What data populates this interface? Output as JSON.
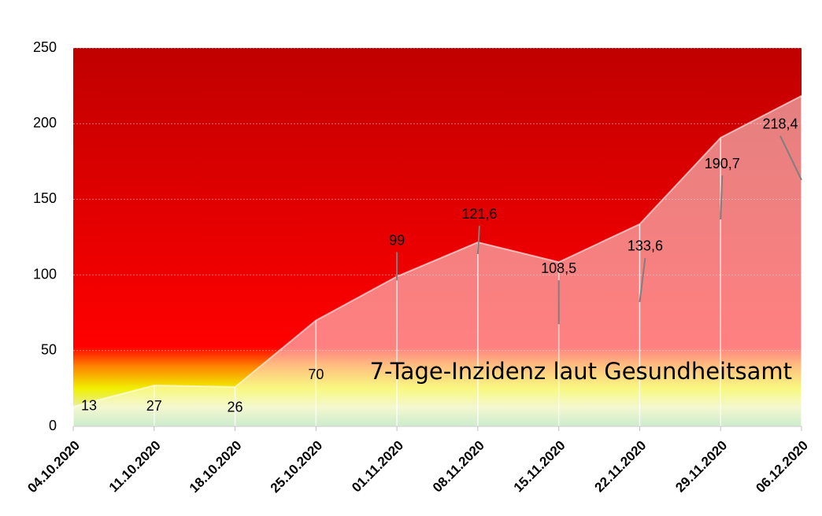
{
  "chart_data": {
    "type": "area",
    "annotation": "7-Tage-Inzidenz laut Gesundheitsamt",
    "categories": [
      "04.10.2020",
      "11.10.2020",
      "18.10.2020",
      "25.10.2020",
      "01.11.2020",
      "08.11.2020",
      "15.11.2020",
      "22.11.2020",
      "29.11.2020",
      "06.12.2020"
    ],
    "values": [
      13,
      27,
      26,
      70,
      99,
      121.6,
      108.5,
      133.6,
      190.7,
      218.4
    ],
    "value_labels": [
      "13",
      "27",
      "26",
      "70",
      "99",
      "121,6",
      "108,5",
      "133,6",
      "190,7",
      "218,4"
    ],
    "color": "#ffffff",
    "ylim": [
      0,
      250
    ],
    "yticks": [
      0,
      50,
      100,
      150,
      200,
      250
    ],
    "grid": true
  }
}
